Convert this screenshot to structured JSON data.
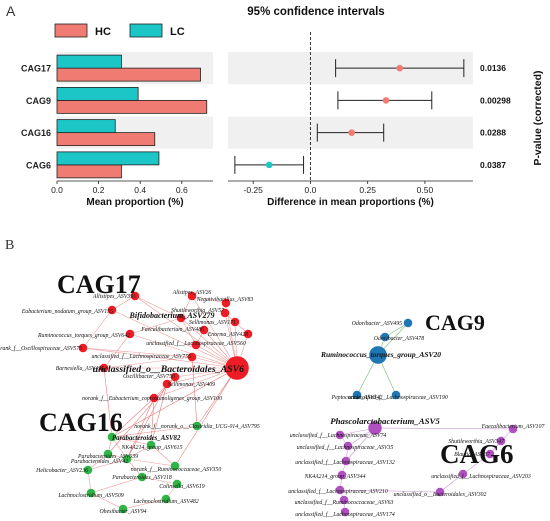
{
  "panel_a_label": "A",
  "panel_b_label": "B",
  "chart_data": [
    {
      "type": "bar",
      "orientation": "horizontal",
      "categories": [
        "CAG17",
        "CAG9",
        "CAG16",
        "CAG6"
      ],
      "series": [
        {
          "name": "HC",
          "color": "#f07b72",
          "values": [
            0.69,
            0.72,
            0.47,
            0.31
          ]
        },
        {
          "name": "LC",
          "color": "#1dc6c6",
          "values": [
            0.31,
            0.39,
            0.28,
            0.49
          ]
        }
      ],
      "xlabel": "Mean proportion (%)",
      "xticks": [
        "0.0",
        "0.2",
        "0.4",
        "0.6"
      ],
      "xlim": [
        0,
        0.75
      ],
      "legend_position": "top"
    },
    {
      "type": "scatter",
      "subtype": "confidence-interval",
      "title": "95% confidence intervals",
      "categories": [
        "CAG17",
        "CAG9",
        "CAG16",
        "CAG6"
      ],
      "estimates": [
        0.39,
        0.33,
        0.18,
        -0.18
      ],
      "lower": [
        0.11,
        0.12,
        0.03,
        -0.33
      ],
      "upper": [
        0.67,
        0.53,
        0.32,
        -0.03
      ],
      "point_colors": [
        "#f07b72",
        "#f07b72",
        "#f07b72",
        "#1dc6c6"
      ],
      "xlabel": "Difference in mean proportions (%)",
      "xticks": [
        "-0.25",
        "0.0",
        "0.25",
        "0.50"
      ],
      "xlim": [
        -0.36,
        0.71
      ],
      "pvalues": [
        "0.0136",
        "0.00298",
        "0.0288",
        "0.0387"
      ],
      "pvalue_label": "P-value (corrected)"
    }
  ],
  "network": {
    "groups": [
      {
        "id": "CAG17",
        "label": "CAG17",
        "color": "#ee1c24",
        "nodes": [
          {
            "label": "Allistipes_ASV391"
          },
          {
            "label": "Alistipes_ASV26"
          },
          {
            "label": "Eubacterium_nodatum_group_ASV155"
          },
          {
            "label": "Negativibacillus_ASV83"
          },
          {
            "label": "Shuttleworthia_ASV57"
          },
          {
            "label": "Sellimonas_ASV171"
          },
          {
            "label": "Bifidobacterium_ASV279"
          },
          {
            "label": "Faecalibacterium_ASV486"
          },
          {
            "label": "Ruminococcus_torques_group_ASV642"
          },
          {
            "label": "Enorma_ASV428"
          },
          {
            "label": "norank_f__Oscillospiraceae_ASV575"
          },
          {
            "label": "unclassified_f__Lachnospiraceae_ASV560"
          },
          {
            "label": "unclassified_f__Lachnospiraceae_ASV755"
          },
          {
            "label": "Barnesiella_ASV495"
          },
          {
            "label": "unclassified_o__Bacteroidales_ASV6"
          },
          {
            "label": "Oscillibacter_ASV750"
          },
          {
            "label": "Sellimonas_ASV409"
          },
          {
            "label": "norank_f__Eubacterium_coprostanoligenes_group_ASV100"
          }
        ]
      },
      {
        "id": "CAG9",
        "label": "CAG9",
        "color": "#1f78b4",
        "nodes": [
          {
            "label": "Odoribacter_ASV495"
          },
          {
            "label": "Odoribacter_ASV478"
          },
          {
            "label": "Ruminococcus_torques_group_ASV20"
          },
          {
            "label": "Peptococcus_ASV342"
          },
          {
            "label": "unclassified_f__Lachnospiraceae_ASV190"
          }
        ]
      },
      {
        "id": "CAG16",
        "label": "CAG16",
        "color": "#2fb547",
        "nodes": [
          {
            "label": "norank_f__norank_o__Clostridia_UCG-014_ASV795"
          },
          {
            "label": "Parabacteroides_ASV82"
          },
          {
            "label": "NK4A214_group_ASV615"
          },
          {
            "label": "Parabacteroides_ASV639"
          },
          {
            "label": "Parabacteroides_ASV42"
          },
          {
            "label": "norank_f__Ruminococcaceae_ASV350"
          },
          {
            "label": "Helicobacter_ASV236"
          },
          {
            "label": "Parabacteroides_ASV118"
          },
          {
            "label": "Colinsella_ASV619"
          },
          {
            "label": "Lachnoclostridium_ASV509"
          },
          {
            "label": "Lachnoclostridium_ASV482"
          },
          {
            "label": "Obesibacter_ASV94"
          }
        ]
      },
      {
        "id": "CAG6",
        "label": "CAG6",
        "color": "#b04fc0",
        "nodes": [
          {
            "label": "Phascolarctobacterium_ASV5"
          },
          {
            "label": "unclassified_f__Lachnospiraceae_ASV74"
          },
          {
            "label": "Faecalibacterium_ASV107"
          },
          {
            "label": "unclassified_f__Lachnospiraceae_ASV35"
          },
          {
            "label": "Shuttleworthia_ASV347"
          },
          {
            "label": "unclassified_f__Lachnospiraceae_ASV132"
          },
          {
            "label": "Blautia_ASV37"
          },
          {
            "label": "NK4A214_group_ASV344"
          },
          {
            "label": "unclassified_f__Lachnospiraceae_ASV203"
          },
          {
            "label": "unclassified_f__Lachnospiraceae_ASV210"
          },
          {
            "label": "unclassified_o__Bacteroidales_ASV302"
          },
          {
            "label": "unclassified_f__Ruminococcaceae_ASV63"
          },
          {
            "label": "unclassified_f__Lachnospiraceae_ASV174"
          }
        ]
      }
    ]
  }
}
